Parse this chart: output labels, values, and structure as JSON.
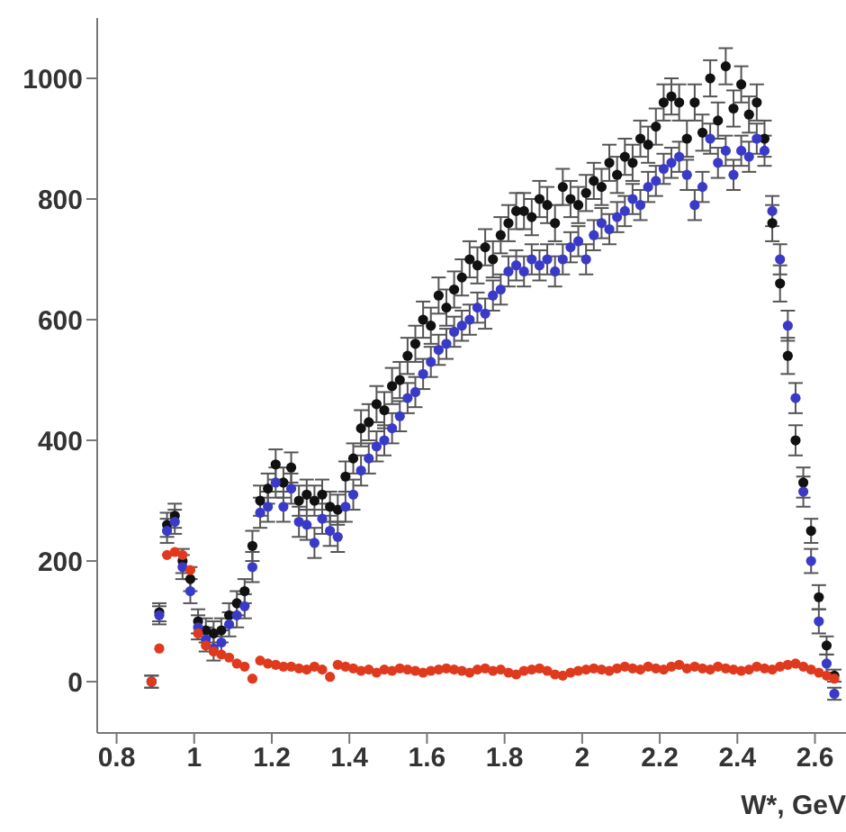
{
  "chart_data": {
    "type": "scatter",
    "xlabel": "W*, GeV",
    "marker": "circle",
    "xlim": [
      0.75,
      2.68
    ],
    "ylim": [
      -85,
      1100
    ],
    "xticks": [
      0.8,
      1,
      1.2,
      1.4,
      1.6,
      1.8,
      2,
      2.2,
      2.4,
      2.6
    ],
    "yticks": [
      0,
      200,
      400,
      600,
      800,
      1000
    ],
    "grid": false,
    "legend": false,
    "x": [
      0.89,
      0.91,
      0.93,
      0.95,
      0.97,
      0.99,
      1.01,
      1.03,
      1.05,
      1.07,
      1.09,
      1.11,
      1.13,
      1.15,
      1.17,
      1.19,
      1.21,
      1.23,
      1.25,
      1.27,
      1.29,
      1.31,
      1.33,
      1.35,
      1.37,
      1.39,
      1.41,
      1.43,
      1.45,
      1.47,
      1.49,
      1.51,
      1.53,
      1.55,
      1.57,
      1.59,
      1.61,
      1.63,
      1.65,
      1.67,
      1.69,
      1.71,
      1.73,
      1.75,
      1.77,
      1.79,
      1.81,
      1.83,
      1.85,
      1.87,
      1.89,
      1.91,
      1.93,
      1.95,
      1.97,
      1.99,
      2.01,
      2.03,
      2.05,
      2.07,
      2.09,
      2.11,
      2.13,
      2.15,
      2.17,
      2.19,
      2.21,
      2.23,
      2.25,
      2.27,
      2.29,
      2.31,
      2.33,
      2.35,
      2.37,
      2.39,
      2.41,
      2.43,
      2.45,
      2.47,
      2.49,
      2.51,
      2.53,
      2.55,
      2.57,
      2.59,
      2.61,
      2.63,
      2.65
    ],
    "series": [
      {
        "color": "#111111",
        "values": [
          0,
          115,
          260,
          275,
          200,
          170,
          100,
          85,
          80,
          85,
          110,
          130,
          150,
          225,
          300,
          320,
          360,
          330,
          355,
          300,
          310,
          300,
          310,
          290,
          285,
          340,
          370,
          420,
          430,
          460,
          450,
          490,
          500,
          540,
          560,
          600,
          590,
          640,
          620,
          650,
          670,
          700,
          690,
          720,
          700,
          740,
          760,
          780,
          780,
          770,
          800,
          790,
          760,
          820,
          800,
          790,
          810,
          830,
          820,
          860,
          840,
          870,
          860,
          900,
          890,
          920,
          960,
          970,
          960,
          900,
          960,
          910,
          1000,
          930,
          1020,
          950,
          990,
          940,
          960,
          900,
          760,
          660,
          540,
          400,
          330,
          250,
          140,
          60,
          10
        ],
        "errors": [
          10,
          15,
          20,
          20,
          20,
          20,
          20,
          20,
          20,
          20,
          20,
          20,
          20,
          25,
          25,
          25,
          25,
          25,
          25,
          25,
          25,
          25,
          25,
          25,
          25,
          25,
          25,
          30,
          30,
          30,
          30,
          30,
          30,
          30,
          30,
          30,
          30,
          30,
          30,
          30,
          30,
          30,
          30,
          30,
          30,
          30,
          30,
          30,
          30,
          30,
          30,
          30,
          30,
          30,
          30,
          30,
          30,
          30,
          30,
          30,
          30,
          30,
          30,
          30,
          30,
          30,
          30,
          30,
          30,
          30,
          30,
          30,
          30,
          30,
          30,
          30,
          30,
          30,
          30,
          30,
          30,
          30,
          30,
          25,
          25,
          20,
          20,
          15,
          10
        ]
      },
      {
        "color": "#3a3ac8",
        "values": [
          0,
          110,
          250,
          265,
          190,
          150,
          90,
          70,
          55,
          65,
          95,
          110,
          125,
          190,
          280,
          290,
          330,
          290,
          320,
          265,
          260,
          230,
          270,
          250,
          240,
          290,
          310,
          350,
          370,
          390,
          400,
          420,
          440,
          470,
          480,
          510,
          530,
          550,
          560,
          580,
          590,
          600,
          620,
          610,
          640,
          650,
          680,
          690,
          680,
          700,
          690,
          700,
          680,
          700,
          720,
          730,
          700,
          740,
          760,
          750,
          770,
          780,
          800,
          790,
          820,
          830,
          850,
          860,
          870,
          840,
          790,
          820,
          900,
          860,
          880,
          840,
          880,
          870,
          900,
          880,
          780,
          700,
          590,
          470,
          315,
          200,
          100,
          30,
          -20
        ],
        "errors": [
          10,
          15,
          20,
          20,
          20,
          20,
          20,
          20,
          20,
          20,
          20,
          20,
          20,
          25,
          25,
          25,
          25,
          25,
          25,
          25,
          25,
          25,
          25,
          25,
          25,
          25,
          25,
          25,
          25,
          25,
          25,
          25,
          25,
          25,
          25,
          25,
          25,
          25,
          25,
          25,
          25,
          25,
          25,
          25,
          25,
          25,
          25,
          25,
          25,
          25,
          25,
          25,
          25,
          25,
          25,
          25,
          25,
          25,
          25,
          25,
          25,
          25,
          25,
          25,
          25,
          25,
          25,
          25,
          25,
          25,
          25,
          25,
          25,
          25,
          25,
          25,
          25,
          25,
          25,
          25,
          25,
          25,
          25,
          25,
          25,
          20,
          20,
          15,
          10
        ]
      },
      {
        "color": "#e03a1e",
        "values": [
          0,
          55,
          210,
          215,
          210,
          185,
          80,
          60,
          50,
          45,
          40,
          30,
          25,
          5,
          35,
          30,
          28,
          25,
          25,
          22,
          20,
          25,
          20,
          8,
          28,
          25,
          22,
          18,
          20,
          15,
          20,
          18,
          22,
          20,
          18,
          15,
          18,
          20,
          22,
          20,
          18,
          15,
          20,
          22,
          18,
          20,
          15,
          12,
          18,
          20,
          22,
          18,
          12,
          10,
          15,
          18,
          20,
          22,
          20,
          18,
          22,
          25,
          22,
          20,
          25,
          22,
          20,
          25,
          28,
          22,
          25,
          22,
          20,
          25,
          22,
          20,
          18,
          20,
          25,
          22,
          20,
          25,
          28,
          30,
          25,
          20,
          15,
          10,
          5
        ]
      }
    ]
  }
}
